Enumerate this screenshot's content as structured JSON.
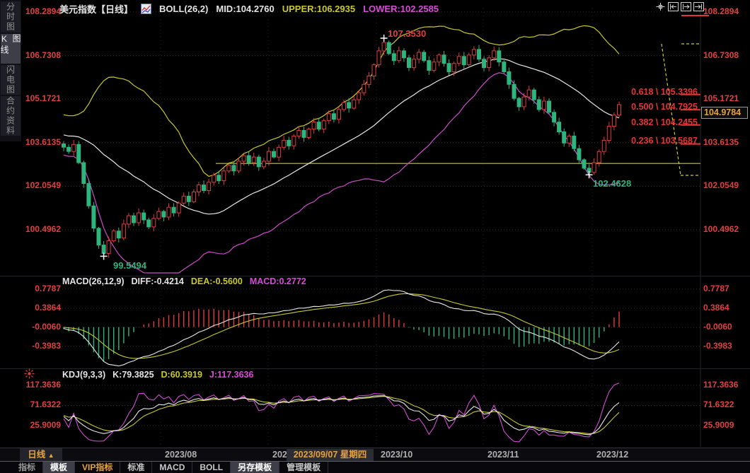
{
  "header": {
    "title": "美元指数【日线】",
    "indicator": "BOLL(26,2)",
    "mid": "MID:104.2760",
    "upper": "UPPER:106.2935",
    "lower": "LOWER:102.2585"
  },
  "sidebar": {
    "items": [
      {
        "label": "分时图",
        "active": false
      },
      {
        "label": "K线图",
        "active": true
      },
      {
        "label": "闪电图",
        "active": false
      },
      {
        "label": "合约资料",
        "active": false
      }
    ]
  },
  "main_axis": {
    "labels": [
      "108.2894",
      "106.7308",
      "105.1721",
      "103.6135",
      "102.0549",
      "100.4962"
    ],
    "current": "104.9784"
  },
  "annotations": {
    "high": "107.3530",
    "low": "99.5494",
    "swing_low": "102.4628"
  },
  "fib": {
    "labels": [
      "0.618 \\ 105.3396",
      "0.500 \\ 104.7925",
      "0.382 \\ 104.2455",
      "0.236 \\ 103.5687"
    ]
  },
  "macd": {
    "header": "MACD(26,12,9)",
    "diff": "DIFF:-0.4214",
    "dea": "DEA:-0.5600",
    "macd": "MACD:0.2772",
    "axis": [
      "0.7787",
      "0.3864",
      "-0.0060",
      "-0.3983"
    ]
  },
  "kdj": {
    "header": "KDJ(9,3,3)",
    "k": "K:79.3825",
    "d": "D:60.3919",
    "j": "J:117.3636",
    "axis": [
      "117.3636",
      "71.6322",
      "25.9009"
    ]
  },
  "xaxis": {
    "period": "日线",
    "arrow": "▲",
    "labels": [
      "2023/08",
      "202",
      "2023/10",
      "2023/11",
      "2023/12"
    ],
    "tooltip": "2023/09/07 星期四"
  },
  "toolbar": {
    "items": [
      {
        "label": "指标"
      },
      {
        "label": "模板"
      },
      {
        "label": "VIP指标"
      },
      {
        "label": "标准"
      },
      {
        "label": "MACD"
      },
      {
        "label": "BOLL"
      },
      {
        "label": "另存模板"
      },
      {
        "label": "管理模板"
      }
    ]
  },
  "chart_data": {
    "type": "candlestick",
    "symbol": "美元指数",
    "period": "日线",
    "x_labels": [
      "2023/08",
      "2023/09",
      "2023/10",
      "2023/11",
      "2023/12"
    ],
    "y_axis_main": [
      108.2894,
      106.7308,
      105.1721,
      103.6135,
      102.0549,
      100.4962
    ],
    "boll": {
      "n": 26,
      "k": 2,
      "mid": 104.276,
      "upper": 106.2935,
      "lower": 102.2585
    },
    "macd_values": {
      "diff": -0.4214,
      "dea": -0.56,
      "macd": 0.2772,
      "axis": [
        0.7787,
        0.3864,
        -0.006,
        -0.3983
      ]
    },
    "kdj_values": {
      "k": 79.3825,
      "d": 60.3919,
      "j": 117.3636,
      "axis": [
        117.3636,
        71.6322,
        25.9009
      ]
    },
    "key_points": {
      "high": 107.353,
      "low": 99.5494,
      "swing_low": 102.4628,
      "last": 104.9784
    },
    "fib_levels": [
      {
        "ratio": 0.618,
        "price": 105.3396
      },
      {
        "ratio": 0.5,
        "price": 104.7925
      },
      {
        "ratio": 0.382,
        "price": 104.2455
      },
      {
        "ratio": 0.236,
        "price": 103.5687
      }
    ],
    "drawings": {
      "horizontal_line_price": 102.87
    },
    "closes": [
      103.45,
      103.3,
      103.55,
      102.9,
      102.15,
      101.35,
      100.55,
      99.95,
      99.65,
      100.1,
      100.45,
      100.2,
      100.7,
      101.0,
      100.75,
      101.1,
      100.85,
      100.6,
      100.9,
      101.15,
      100.95,
      101.3,
      101.1,
      101.45,
      101.7,
      101.5,
      101.85,
      102.1,
      101.9,
      102.2,
      102.45,
      102.25,
      102.6,
      102.8,
      102.6,
      102.95,
      103.15,
      102.9,
      103.1,
      102.75,
      102.95,
      103.3,
      103.1,
      103.45,
      103.7,
      103.5,
      103.85,
      104.05,
      103.8,
      104.1,
      104.35,
      104.1,
      104.4,
      104.65,
      104.45,
      104.8,
      105.05,
      104.85,
      105.15,
      105.4,
      105.7,
      106.0,
      106.4,
      106.9,
      107.2,
      106.8,
      106.55,
      106.9,
      106.65,
      106.3,
      106.6,
      106.85,
      106.55,
      106.2,
      106.5,
      106.75,
      106.45,
      106.15,
      106.45,
      106.7,
      106.4,
      106.75,
      106.95,
      106.6,
      106.3,
      106.65,
      106.9,
      106.5,
      106.15,
      105.7,
      105.2,
      104.9,
      105.25,
      105.5,
      105.15,
      104.8,
      105.1,
      104.7,
      104.35,
      104.0,
      103.6,
      103.85,
      103.4,
      103.0,
      102.7,
      102.55,
      102.9,
      103.3,
      103.7,
      104.2,
      104.6,
      104.9784
    ]
  }
}
